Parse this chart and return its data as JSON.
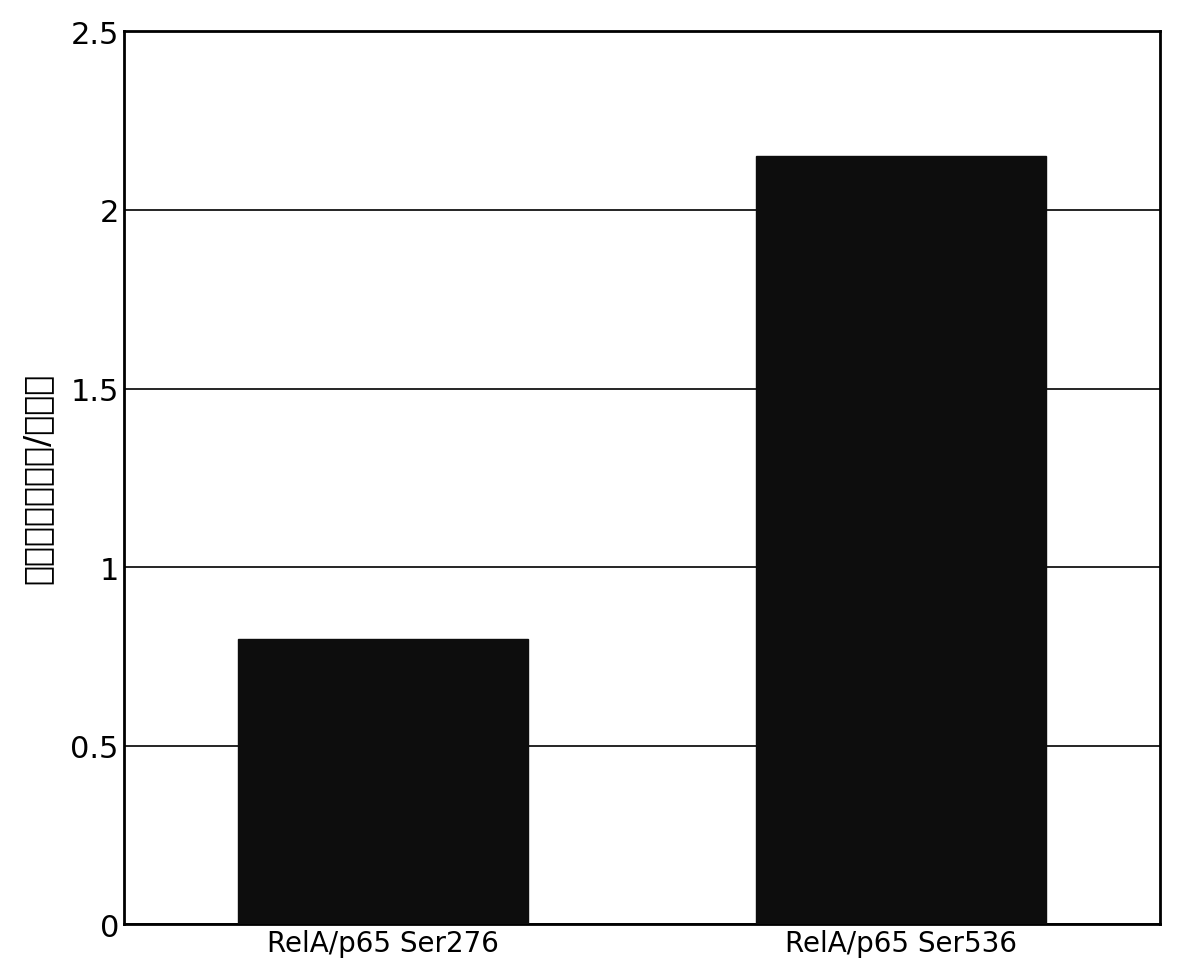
{
  "categories": [
    "RelA/p65 Ser276",
    "RelA/p65 Ser536"
  ],
  "values": [
    0.8,
    2.15
  ],
  "bar_color": "#0d0d0d",
  "bar_width": 0.28,
  "ylabel": "相对水平（肿瘾/正常）",
  "ylim": [
    0,
    2.5
  ],
  "yticks": [
    0,
    0.5,
    1.0,
    1.5,
    2.0,
    2.5
  ],
  "background_color": "#ffffff",
  "ylabel_fontsize": 24,
  "tick_fontsize": 22,
  "xtick_fontsize": 20,
  "grid_color": "#000000",
  "grid_linewidth": 1.2,
  "spine_linewidth": 2.0,
  "x_positions": [
    0.25,
    0.75
  ],
  "xlim": [
    0.0,
    1.0
  ]
}
